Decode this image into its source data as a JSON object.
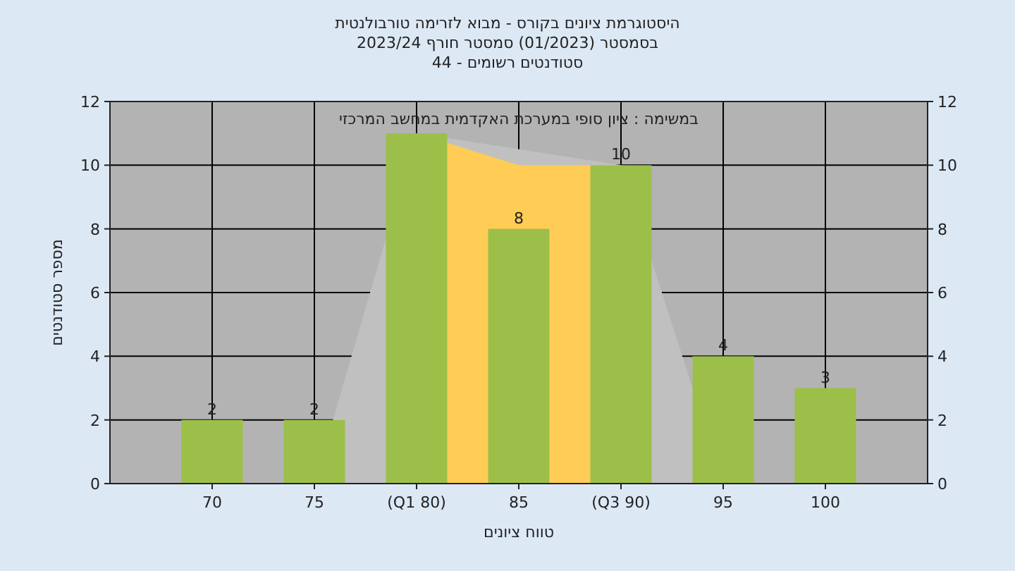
{
  "chart_data": {
    "type": "bar",
    "title": "היסטוגרמת ציונים בקורס - מבוא לזרימה טורבולנטית",
    "subtitle": "בסמסטר  (01/2023)  סמסטר חורף 2023/24",
    "xlabel": "טווח ציונים",
    "ylabel": "מספר סטודנטים",
    "annotations": [
      "סטודנטים רשומים - 44",
      "במשימה : ציון סופי במערכת האקדמית במחשב המרכזי"
    ],
    "categories": [
      "70",
      "75",
      "(Q1 80)",
      "85",
      "(Q3 90)",
      "95",
      "100"
    ],
    "series": [
      {
        "type": "area",
        "color": "#c0c0c0",
        "values": [
          null,
          0,
          11,
          null,
          10,
          0,
          null
        ]
      },
      {
        "type": "area",
        "color": "#ffcc55",
        "values": [
          null,
          null,
          11,
          10,
          10,
          null,
          null
        ]
      },
      {
        "color": "#9cbf4a",
        "values": [
          2,
          2,
          11,
          8,
          10,
          4,
          3
        ],
        "value_labels": [
          "2",
          "2",
          null,
          "8",
          "10",
          "4",
          "3"
        ]
      }
    ],
    "ylim": [
      0,
      12
    ],
    "yticks": [
      0,
      2,
      4,
      6,
      8,
      10,
      12
    ],
    "y2lim": [
      0,
      12
    ],
    "y2ticks": [
      0,
      2,
      4,
      6,
      8,
      10,
      12
    ],
    "grid": true
  }
}
